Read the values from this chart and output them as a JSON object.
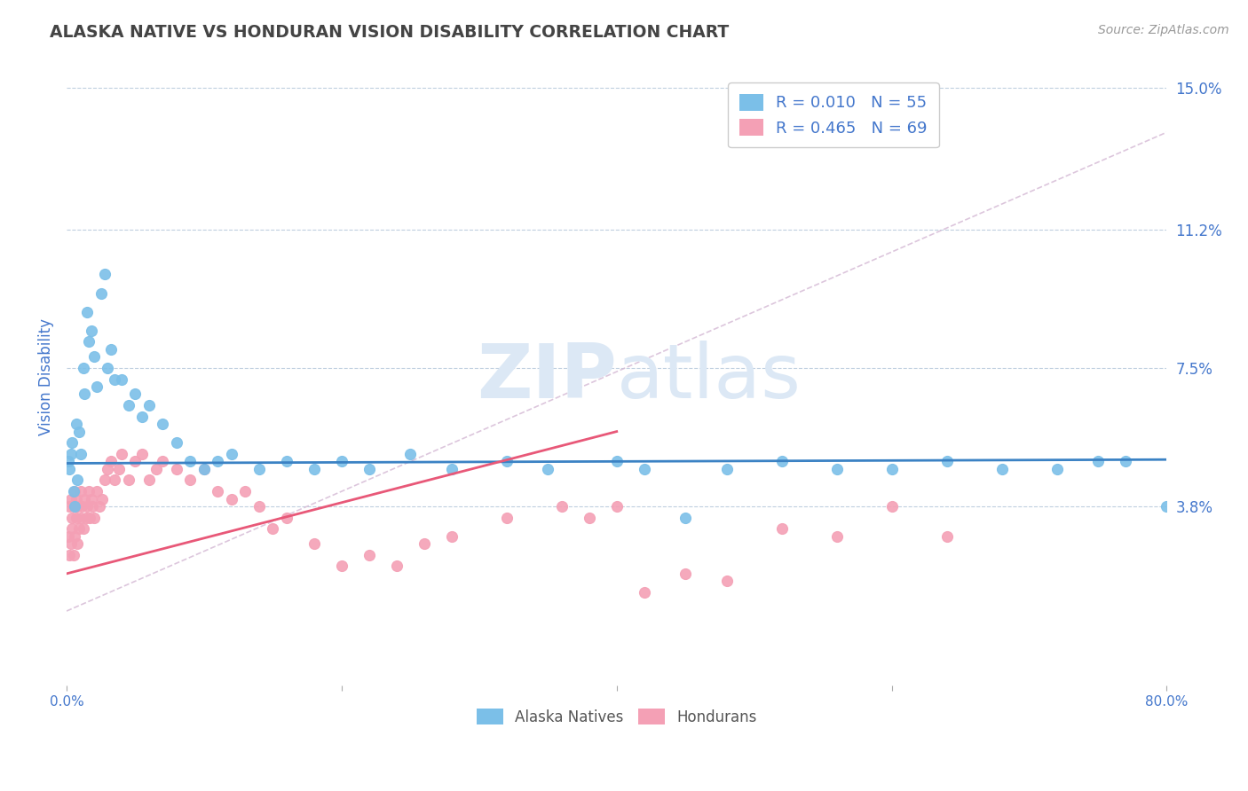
{
  "title": "ALASKA NATIVE VS HONDURAN VISION DISABILITY CORRELATION CHART",
  "source": "Source: ZipAtlas.com",
  "ylabel": "Vision Disability",
  "xlim": [
    0.0,
    0.8
  ],
  "ylim": [
    -0.01,
    0.155
  ],
  "yticks": [
    0.038,
    0.075,
    0.112,
    0.15
  ],
  "ytick_labels": [
    "3.8%",
    "7.5%",
    "11.2%",
    "15.0%"
  ],
  "xticks": [
    0.0,
    0.2,
    0.4,
    0.6,
    0.8
  ],
  "xtick_labels": [
    "0.0%",
    "",
    "",
    "",
    "80.0%"
  ],
  "alaska_R": 0.01,
  "alaska_N": 55,
  "honduran_R": 0.465,
  "honduran_N": 69,
  "alaska_color": "#7BBFE8",
  "honduran_color": "#F4A0B5",
  "alaska_line_color": "#3B82C4",
  "honduran_line_color": "#E85878",
  "diagonal_line_color": "#D4B8D4",
  "watermark": "ZIPatlas",
  "watermark_color": "#DCE8F5",
  "background_color": "#FFFFFF",
  "grid_color": "#BFCFDF",
  "title_color": "#444444",
  "tick_label_color": "#4477CC",
  "legend_alaska_label": "Alaska Natives",
  "legend_honduran_label": "Hondurans",
  "alaska_x": [
    0.001,
    0.002,
    0.003,
    0.004,
    0.005,
    0.006,
    0.007,
    0.008,
    0.009,
    0.01,
    0.012,
    0.013,
    0.015,
    0.016,
    0.018,
    0.02,
    0.022,
    0.025,
    0.028,
    0.03,
    0.032,
    0.035,
    0.04,
    0.045,
    0.05,
    0.055,
    0.06,
    0.07,
    0.08,
    0.09,
    0.1,
    0.11,
    0.12,
    0.14,
    0.16,
    0.18,
    0.2,
    0.22,
    0.25,
    0.28,
    0.32,
    0.35,
    0.4,
    0.42,
    0.45,
    0.48,
    0.52,
    0.56,
    0.6,
    0.64,
    0.68,
    0.72,
    0.75,
    0.77,
    0.8
  ],
  "alaska_y": [
    0.05,
    0.048,
    0.052,
    0.055,
    0.042,
    0.038,
    0.06,
    0.045,
    0.058,
    0.052,
    0.075,
    0.068,
    0.09,
    0.082,
    0.085,
    0.078,
    0.07,
    0.095,
    0.1,
    0.075,
    0.08,
    0.072,
    0.072,
    0.065,
    0.068,
    0.062,
    0.065,
    0.06,
    0.055,
    0.05,
    0.048,
    0.05,
    0.052,
    0.048,
    0.05,
    0.048,
    0.05,
    0.048,
    0.052,
    0.048,
    0.05,
    0.048,
    0.05,
    0.048,
    0.035,
    0.048,
    0.05,
    0.048,
    0.048,
    0.05,
    0.048,
    0.048,
    0.05,
    0.05,
    0.038
  ],
  "honduran_x": [
    0.001,
    0.002,
    0.002,
    0.003,
    0.003,
    0.004,
    0.004,
    0.005,
    0.005,
    0.006,
    0.006,
    0.007,
    0.007,
    0.008,
    0.008,
    0.009,
    0.01,
    0.01,
    0.011,
    0.012,
    0.013,
    0.014,
    0.015,
    0.016,
    0.017,
    0.018,
    0.019,
    0.02,
    0.022,
    0.024,
    0.026,
    0.028,
    0.03,
    0.032,
    0.035,
    0.038,
    0.04,
    0.045,
    0.05,
    0.055,
    0.06,
    0.065,
    0.07,
    0.08,
    0.09,
    0.1,
    0.11,
    0.12,
    0.13,
    0.14,
    0.15,
    0.16,
    0.18,
    0.2,
    0.22,
    0.24,
    0.26,
    0.28,
    0.32,
    0.36,
    0.38,
    0.4,
    0.42,
    0.45,
    0.48,
    0.52,
    0.56,
    0.6,
    0.64
  ],
  "honduran_y": [
    0.03,
    0.025,
    0.038,
    0.028,
    0.04,
    0.032,
    0.035,
    0.025,
    0.038,
    0.03,
    0.042,
    0.035,
    0.04,
    0.028,
    0.038,
    0.032,
    0.035,
    0.042,
    0.038,
    0.032,
    0.04,
    0.035,
    0.038,
    0.042,
    0.035,
    0.04,
    0.038,
    0.035,
    0.042,
    0.038,
    0.04,
    0.045,
    0.048,
    0.05,
    0.045,
    0.048,
    0.052,
    0.045,
    0.05,
    0.052,
    0.045,
    0.048,
    0.05,
    0.048,
    0.045,
    0.048,
    0.042,
    0.04,
    0.042,
    0.038,
    0.032,
    0.035,
    0.028,
    0.022,
    0.025,
    0.022,
    0.028,
    0.03,
    0.035,
    0.038,
    0.035,
    0.038,
    0.015,
    0.02,
    0.018,
    0.032,
    0.03,
    0.038,
    0.03
  ],
  "alaska_line_x": [
    0.0,
    0.8
  ],
  "alaska_line_y": [
    0.0495,
    0.0505
  ],
  "honduran_line_x": [
    0.0,
    0.4
  ],
  "honduran_line_y": [
    0.02,
    0.058
  ],
  "diag_line_x": [
    0.0,
    0.8
  ],
  "diag_line_y": [
    0.01,
    0.138
  ]
}
